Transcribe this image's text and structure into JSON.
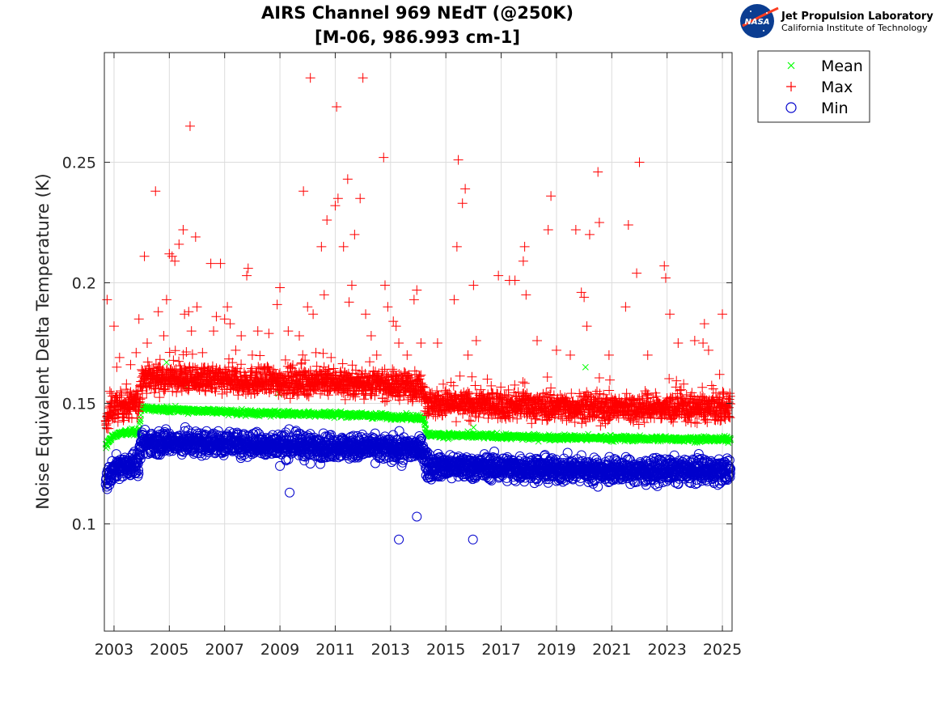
{
  "header": {
    "title_line1": "AIRS Channel 969 NEdT (@250K)",
    "title_line2": "[M-06, 986.993 cm-1]"
  },
  "logo": {
    "badge_text": "NASA",
    "org_name": "Jet Propulsion Laboratory",
    "org_sub": "California Institute of Technology"
  },
  "chart_data": {
    "type": "scatter",
    "title": "AIRS Channel 969 NEdT (@250K) [M-06, 986.993 cm-1]",
    "xlabel": "",
    "ylabel": "Noise Equivalent Delta Temperature (K)",
    "xlim": [
      2002.65,
      2025.35
    ],
    "ylim": [
      0.0555,
      0.2955
    ],
    "xticks": [
      2003,
      2005,
      2007,
      2009,
      2011,
      2013,
      2015,
      2017,
      2019,
      2021,
      2023,
      2025
    ],
    "xtick_labels": [
      "2003",
      "2005",
      "2007",
      "2009",
      "2011",
      "2013",
      "2015",
      "2017",
      "2019",
      "2021",
      "2023",
      "2025"
    ],
    "yticks": [
      0.1,
      0.15,
      0.2,
      0.25
    ],
    "ytick_labels": [
      "0.1",
      "0.15",
      "0.2",
      "0.25"
    ],
    "grid": true,
    "legend_position": "outside-top-right",
    "series": [
      {
        "name": "Mean",
        "marker": "x",
        "color": "#00ff00",
        "baseline": [
          [
            2002.7,
            0.132
          ],
          [
            2002.9,
            0.136
          ],
          [
            2003.3,
            0.138
          ],
          [
            2003.9,
            0.138
          ],
          [
            2004.0,
            0.148
          ],
          [
            2008.0,
            0.146
          ],
          [
            2011.0,
            0.1455
          ],
          [
            2014.2,
            0.144
          ],
          [
            2014.3,
            0.137
          ],
          [
            2018.0,
            0.136
          ],
          [
            2021.0,
            0.1355
          ],
          [
            2025.3,
            0.135
          ]
        ],
        "noise": 0.0008,
        "outliers": [
          [
            2004.9,
            0.167
          ],
          [
            2008.95,
            0.154
          ],
          [
            2014.25,
            0.138
          ],
          [
            2016.0,
            0.14
          ],
          [
            2020.05,
            0.165
          ],
          [
            2005.6,
            0.157
          ]
        ]
      },
      {
        "name": "Max",
        "marker": "+",
        "color": "#ff0000",
        "baseline": [
          [
            2002.7,
            0.14
          ],
          [
            2002.9,
            0.148
          ],
          [
            2003.9,
            0.15
          ],
          [
            2004.0,
            0.161
          ],
          [
            2008.0,
            0.159
          ],
          [
            2011.0,
            0.159
          ],
          [
            2014.2,
            0.157
          ],
          [
            2014.3,
            0.15
          ],
          [
            2018.0,
            0.149
          ],
          [
            2021.0,
            0.148
          ],
          [
            2025.3,
            0.148
          ]
        ],
        "noise": 0.004,
        "outliers": [
          [
            2002.75,
            0.193
          ],
          [
            2002.85,
            0.155
          ],
          [
            2003.0,
            0.182
          ],
          [
            2003.1,
            0.165
          ],
          [
            2003.2,
            0.169
          ],
          [
            2003.45,
            0.158
          ],
          [
            2003.6,
            0.166
          ],
          [
            2003.8,
            0.171
          ],
          [
            2003.9,
            0.185
          ],
          [
            2004.1,
            0.211
          ],
          [
            2004.2,
            0.175
          ],
          [
            2004.5,
            0.238
          ],
          [
            2004.6,
            0.188
          ],
          [
            2004.8,
            0.178
          ],
          [
            2004.9,
            0.193
          ],
          [
            2005.0,
            0.212
          ],
          [
            2005.1,
            0.211
          ],
          [
            2005.2,
            0.209
          ],
          [
            2005.35,
            0.216
          ],
          [
            2005.5,
            0.222
          ],
          [
            2005.55,
            0.187
          ],
          [
            2005.7,
            0.188
          ],
          [
            2005.75,
            0.265
          ],
          [
            2005.8,
            0.18
          ],
          [
            2005.95,
            0.219
          ],
          [
            2006.0,
            0.19
          ],
          [
            2006.2,
            0.171
          ],
          [
            2006.5,
            0.208
          ],
          [
            2006.6,
            0.18
          ],
          [
            2006.7,
            0.186
          ],
          [
            2006.85,
            0.208
          ],
          [
            2007.0,
            0.185
          ],
          [
            2007.1,
            0.19
          ],
          [
            2007.2,
            0.183
          ],
          [
            2007.4,
            0.172
          ],
          [
            2007.6,
            0.178
          ],
          [
            2007.8,
            0.203
          ],
          [
            2007.85,
            0.206
          ],
          [
            2008.0,
            0.17
          ],
          [
            2008.2,
            0.18
          ],
          [
            2008.6,
            0.179
          ],
          [
            2008.9,
            0.191
          ],
          [
            2009.0,
            0.198
          ],
          [
            2009.2,
            0.168
          ],
          [
            2009.3,
            0.18
          ],
          [
            2009.7,
            0.178
          ],
          [
            2009.85,
            0.238
          ],
          [
            2010.0,
            0.19
          ],
          [
            2010.1,
            0.285
          ],
          [
            2010.2,
            0.187
          ],
          [
            2010.3,
            0.171
          ],
          [
            2010.5,
            0.215
          ],
          [
            2010.6,
            0.195
          ],
          [
            2010.7,
            0.226
          ],
          [
            2010.85,
            0.169
          ],
          [
            2011.0,
            0.232
          ],
          [
            2011.05,
            0.273
          ],
          [
            2011.1,
            0.235
          ],
          [
            2011.3,
            0.215
          ],
          [
            2011.45,
            0.243
          ],
          [
            2011.5,
            0.192
          ],
          [
            2011.6,
            0.199
          ],
          [
            2011.7,
            0.22
          ],
          [
            2011.9,
            0.235
          ],
          [
            2012.0,
            0.285
          ],
          [
            2012.1,
            0.187
          ],
          [
            2012.3,
            0.178
          ],
          [
            2012.5,
            0.17
          ],
          [
            2012.75,
            0.252
          ],
          [
            2012.8,
            0.199
          ],
          [
            2012.9,
            0.19
          ],
          [
            2013.1,
            0.184
          ],
          [
            2013.2,
            0.182
          ],
          [
            2013.3,
            0.175
          ],
          [
            2013.6,
            0.17
          ],
          [
            2013.85,
            0.193
          ],
          [
            2013.95,
            0.197
          ],
          [
            2014.1,
            0.175
          ],
          [
            2014.7,
            0.175
          ],
          [
            2015.3,
            0.193
          ],
          [
            2015.4,
            0.215
          ],
          [
            2015.45,
            0.251
          ],
          [
            2015.6,
            0.233
          ],
          [
            2015.7,
            0.239
          ],
          [
            2015.8,
            0.17
          ],
          [
            2016.0,
            0.199
          ],
          [
            2016.1,
            0.176
          ],
          [
            2016.5,
            0.16
          ],
          [
            2016.9,
            0.203
          ],
          [
            2017.3,
            0.201
          ],
          [
            2017.5,
            0.201
          ],
          [
            2017.8,
            0.209
          ],
          [
            2017.85,
            0.215
          ],
          [
            2017.9,
            0.195
          ],
          [
            2018.3,
            0.176
          ],
          [
            2018.7,
            0.222
          ],
          [
            2018.8,
            0.236
          ],
          [
            2019.0,
            0.172
          ],
          [
            2019.5,
            0.17
          ],
          [
            2019.7,
            0.222
          ],
          [
            2019.9,
            0.196
          ],
          [
            2020.0,
            0.194
          ],
          [
            2020.1,
            0.182
          ],
          [
            2020.2,
            0.22
          ],
          [
            2020.5,
            0.246
          ],
          [
            2020.55,
            0.225
          ],
          [
            2020.9,
            0.17
          ],
          [
            2021.5,
            0.19
          ],
          [
            2021.6,
            0.224
          ],
          [
            2021.9,
            0.204
          ],
          [
            2022.0,
            0.25
          ],
          [
            2022.3,
            0.17
          ],
          [
            2022.9,
            0.207
          ],
          [
            2022.95,
            0.202
          ],
          [
            2023.1,
            0.187
          ],
          [
            2023.4,
            0.175
          ],
          [
            2023.6,
            0.158
          ],
          [
            2024.0,
            0.176
          ],
          [
            2024.3,
            0.175
          ],
          [
            2024.35,
            0.183
          ],
          [
            2024.5,
            0.172
          ],
          [
            2024.9,
            0.162
          ],
          [
            2025.0,
            0.187
          ]
        ]
      },
      {
        "name": "Min",
        "marker": "o",
        "color": "#0000cc",
        "baseline": [
          [
            2002.7,
            0.118
          ],
          [
            2002.9,
            0.121
          ],
          [
            2003.2,
            0.124
          ],
          [
            2003.9,
            0.125
          ],
          [
            2004.0,
            0.134
          ],
          [
            2008.0,
            0.133
          ],
          [
            2011.0,
            0.132
          ],
          [
            2014.2,
            0.131
          ],
          [
            2014.3,
            0.124
          ],
          [
            2018.0,
            0.123
          ],
          [
            2021.0,
            0.122
          ],
          [
            2025.3,
            0.122
          ]
        ],
        "noise": 0.0035,
        "outliers": [
          [
            2009.0,
            0.124
          ],
          [
            2009.35,
            0.113
          ],
          [
            2010.1,
            0.125
          ],
          [
            2013.3,
            0.0935
          ],
          [
            2013.95,
            0.103
          ],
          [
            2015.98,
            0.0935
          ],
          [
            2018.7,
            0.117
          ],
          [
            2004.5,
            0.129
          ],
          [
            2013.4,
            0.124
          ]
        ]
      }
    ]
  }
}
